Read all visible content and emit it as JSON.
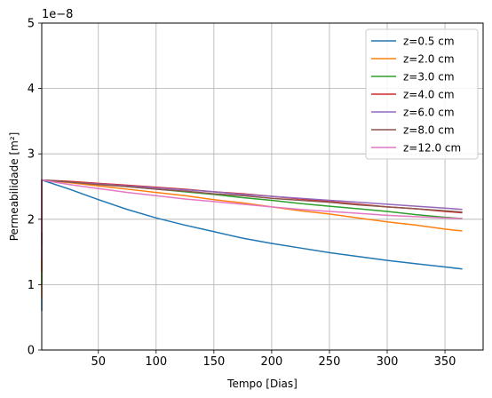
{
  "chart_data": {
    "type": "line",
    "xlabel": "Tempo [Dias]",
    "ylabel": "Permeabilidade [m²]",
    "offset_text": "1e−8",
    "xlim": [
      1,
      383
    ],
    "ylim": [
      0,
      5
    ],
    "xticks": [
      50,
      100,
      150,
      200,
      250,
      300,
      350
    ],
    "yticks": [
      0,
      1,
      2,
      3,
      4,
      5
    ],
    "grid": true,
    "legend_position": "top-right",
    "x": [
      1,
      25,
      50,
      75,
      100,
      125,
      150,
      175,
      200,
      225,
      250,
      275,
      300,
      325,
      350,
      365
    ],
    "series": [
      {
        "name": "z=0.5 cm",
        "color": "#1f77b4",
        "start": [
          1,
          0.6
        ],
        "values": [
          2.6,
          2.46,
          2.3,
          2.15,
          2.02,
          1.91,
          1.81,
          1.71,
          1.63,
          1.56,
          1.49,
          1.43,
          1.37,
          1.32,
          1.27,
          1.24
        ]
      },
      {
        "name": "z=2.0 cm",
        "color": "#ff7f0e",
        "start": [
          1,
          0.8
        ],
        "values": [
          2.6,
          2.56,
          2.51,
          2.46,
          2.41,
          2.36,
          2.3,
          2.25,
          2.19,
          2.13,
          2.08,
          2.02,
          1.96,
          1.91,
          1.85,
          1.82
        ]
      },
      {
        "name": "z=3.0 cm",
        "color": "#2ca02c",
        "start": [
          1,
          1.0
        ],
        "values": [
          2.6,
          2.57,
          2.54,
          2.5,
          2.46,
          2.42,
          2.38,
          2.33,
          2.29,
          2.24,
          2.2,
          2.16,
          2.12,
          2.07,
          2.03,
          2.01
        ]
      },
      {
        "name": "z=4.0 cm",
        "color": "#d62728",
        "start": [
          1,
          1.2
        ],
        "values": [
          2.6,
          2.58,
          2.55,
          2.52,
          2.49,
          2.46,
          2.42,
          2.39,
          2.35,
          2.31,
          2.27,
          2.23,
          2.19,
          2.16,
          2.12,
          2.1
        ]
      },
      {
        "name": "z=6.0 cm",
        "color": "#9467bd",
        "start": [
          1,
          1.4
        ],
        "values": [
          2.6,
          2.57,
          2.54,
          2.51,
          2.48,
          2.45,
          2.42,
          2.38,
          2.35,
          2.32,
          2.29,
          2.26,
          2.23,
          2.2,
          2.17,
          2.15
        ]
      },
      {
        "name": "z=8.0 cm",
        "color": "#8c564b",
        "start": [
          1,
          1.6
        ],
        "values": [
          2.6,
          2.57,
          2.53,
          2.5,
          2.46,
          2.43,
          2.39,
          2.36,
          2.32,
          2.29,
          2.26,
          2.22,
          2.19,
          2.16,
          2.13,
          2.11
        ]
      },
      {
        "name": "z=12.0 cm",
        "color": "#e377c2",
        "start": [
          1,
          1.8
        ],
        "values": [
          2.6,
          2.53,
          2.47,
          2.41,
          2.36,
          2.31,
          2.27,
          2.23,
          2.19,
          2.15,
          2.12,
          2.09,
          2.06,
          2.04,
          2.02,
          2.01
        ]
      }
    ]
  }
}
